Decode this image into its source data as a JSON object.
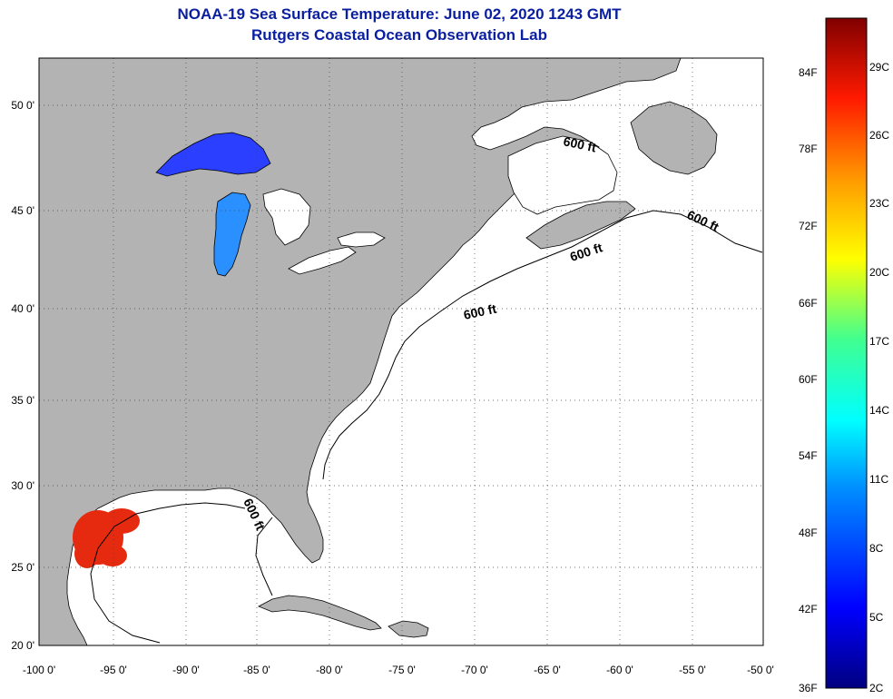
{
  "title": "NOAA-19 Sea Surface Temperature:  June 02, 2020 1243 GMT",
  "subtitle": "Rutgers Coastal Ocean Observation Lab",
  "colors": {
    "land": "#b3b3b3",
    "ocean": "#ffffff",
    "title": "#0a1fa0"
  },
  "lat_labels": [
    "50 0'",
    "45 0'",
    "40 0'",
    "35 0'",
    "30 0'",
    "25 0'",
    "20 0'"
  ],
  "lon_labels": [
    "-100 0'",
    "-95 0'",
    "-90 0'",
    "-85 0'",
    "-80 0'",
    "-75 0'",
    "-70 0'",
    "-65 0'",
    "-60 0'",
    "-55 0'",
    "-50 0'"
  ],
  "contour_labels": [
    "600 ft",
    "600 ft",
    "600 ft",
    "600 ft",
    "600 ft"
  ],
  "colorbar": {
    "fahrenheit": [
      "84F",
      "78F",
      "72F",
      "66F",
      "60F",
      "54F",
      "48F",
      "42F",
      "36F"
    ],
    "celsius": [
      "29C",
      "26C",
      "23C",
      "20C",
      "17C",
      "14C",
      "11C",
      "8C",
      "5C",
      "2C"
    ]
  }
}
